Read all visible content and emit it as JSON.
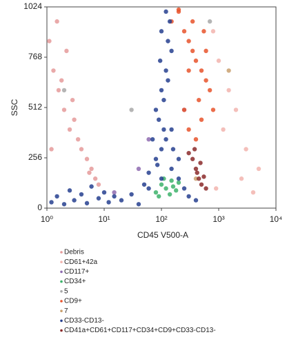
{
  "chart_data": {
    "type": "scatter",
    "x_label": "CD45 V500-A",
    "y_label": "SSC",
    "xscale": "log",
    "xlim": [
      1,
      10000
    ],
    "xticks": [
      {
        "value": 1,
        "label": "10⁰"
      },
      {
        "value": 10,
        "label": "10¹"
      },
      {
        "value": 100,
        "label": "10²"
      },
      {
        "value": 1000,
        "label": "10³"
      },
      {
        "value": 10000,
        "label": "10⁴"
      }
    ],
    "ylim": [
      0,
      1024
    ],
    "yticks": [
      0,
      256,
      512,
      768,
      1024
    ],
    "series": [
      {
        "name": "Debris",
        "color": "#e59a9a",
        "x": [
          1.1,
          1.3,
          1.6,
          2,
          2.5,
          3,
          4,
          5,
          6,
          7,
          1.5,
          2.2,
          3.5,
          1.2,
          5.5,
          8,
          1.8,
          2.8
        ],
        "values": [
          850,
          700,
          600,
          500,
          400,
          450,
          300,
          250,
          200,
          150,
          950,
          800,
          350,
          300,
          180,
          120,
          650,
          550
        ]
      },
      {
        "name": "CD61+42a",
        "color": "#f2b4ae",
        "x": [
          800,
          1000,
          1500,
          2000,
          3000,
          5000,
          1200,
          2500,
          900,
          4000
        ],
        "values": [
          900,
          750,
          600,
          500,
          300,
          200,
          400,
          150,
          100,
          80
        ]
      },
      {
        "name": "CD117+",
        "color": "#8e6bb0",
        "x": [
          40,
          60,
          250,
          15
        ],
        "values": [
          200,
          350,
          500,
          80
        ]
      },
      {
        "name": "CD34+",
        "color": "#3db36b",
        "x": [
          80,
          100,
          120,
          150,
          180,
          200,
          90,
          140,
          160,
          110
        ],
        "values": [
          80,
          120,
          100,
          140,
          90,
          130,
          60,
          70,
          110,
          150
        ]
      },
      {
        "name": "5",
        "color": "#a8a8a8",
        "x": [
          2,
          700,
          30
        ],
        "values": [
          600,
          950,
          500
        ]
      },
      {
        "name": "CD9+",
        "color": "#e8532c",
        "x": [
          150,
          200,
          250,
          300,
          350,
          400,
          500,
          600,
          700,
          250,
          300,
          400,
          500,
          200,
          600,
          350,
          450,
          800,
          300,
          550
        ],
        "values": [
          950,
          1000,
          900,
          850,
          800,
          750,
          700,
          650,
          600,
          500,
          400,
          350,
          450,
          1010,
          800,
          950,
          550,
          500,
          700,
          900
        ]
      },
      {
        "name": "7",
        "color": "#c9a06e",
        "x": [
          400,
          1500
        ],
        "values": [
          150,
          700
        ]
      },
      {
        "name": "CD33-CD13-",
        "color": "#26408f",
        "x": [
          1.2,
          1.5,
          2,
          2.5,
          3,
          4,
          5,
          6,
          8,
          10,
          12,
          15,
          20,
          30,
          40,
          50,
          60,
          80,
          100,
          120,
          150,
          200,
          250,
          300,
          400,
          80,
          100,
          120,
          150,
          90,
          110,
          130,
          100,
          140,
          70,
          160,
          120,
          95,
          130,
          110,
          85,
          150,
          60,
          200,
          100
        ],
        "values": [
          30,
          60,
          20,
          90,
          40,
          70,
          25,
          110,
          50,
          80,
          30,
          60,
          40,
          70,
          20,
          120,
          180,
          250,
          300,
          350,
          400,
          150,
          100,
          60,
          40,
          500,
          600,
          700,
          800,
          450,
          550,
          650,
          900,
          950,
          350,
          300,
          1000,
          750,
          850,
          400,
          220,
          200,
          100,
          250,
          150
        ]
      },
      {
        "name": "CD41a+CD61+CD117+CD34+CD9+CD33-CD13-",
        "color": "#8b2a2a",
        "x": [
          300,
          350,
          400,
          450,
          500,
          600,
          380,
          420,
          550,
          480
        ],
        "values": [
          280,
          250,
          200,
          150,
          120,
          100,
          300,
          180,
          160,
          230
        ]
      }
    ]
  }
}
